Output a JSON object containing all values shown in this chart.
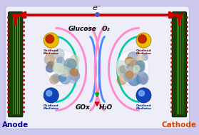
{
  "bg_outer": "#ccc8ee",
  "bg_inner": "#eeeef8",
  "border_outer_color": "#aaa8dd",
  "anode_color_dark": "#1a4008",
  "anode_color_mid": "#2d6a10",
  "anode_color_light": "#5aaa30",
  "electrode_dot_color": "#cc1100",
  "arrow_color": "#cc0000",
  "electron_label": "e⁻",
  "glucose_label": "Glucose",
  "o2_label": "O₂",
  "gox_label": "GOx",
  "h2o_label": "H₂O",
  "anode_label": "Anode",
  "cathode_label": "Cathode",
  "anode_label_color": "#000099",
  "cathode_label_color": "#dd4400",
  "mediator_yellow": "#e8c000",
  "mediator_red_center": "#bb1100",
  "blue_sphere": "#1144bb",
  "blue_highlight": "#88bbff",
  "pink_arc": "#ff88cc",
  "cyan_arc": "#00ccaa",
  "blue_arc": "#4488ff",
  "red_arc": "#cc0000",
  "figwidth": 2.79,
  "figheight": 1.89,
  "dpi": 100
}
